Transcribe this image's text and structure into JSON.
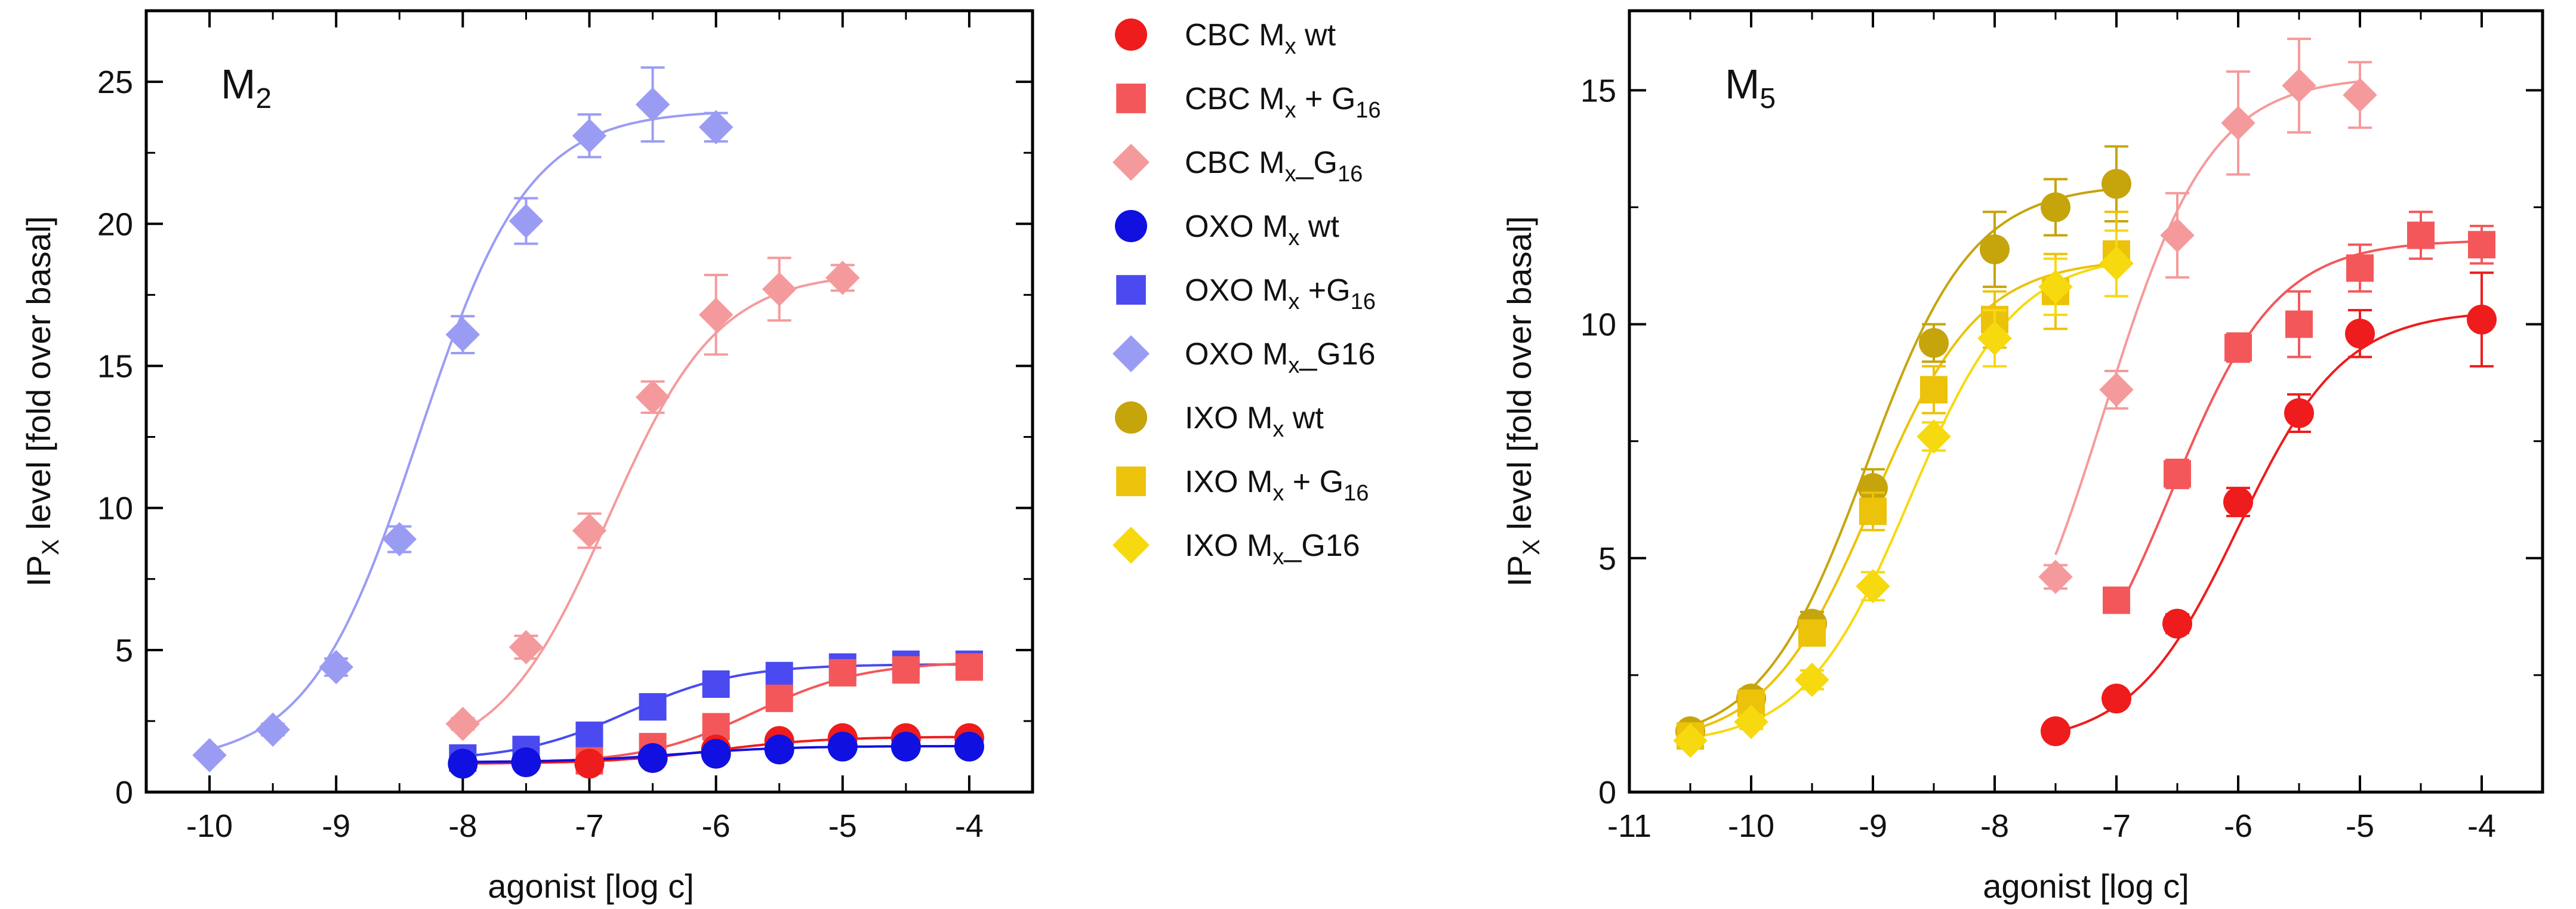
{
  "colors": {
    "cbc_wt": "#ee1c1c",
    "cbc_g16": "#f4575a",
    "cbc_mxg16": "#f59a9c",
    "oxo_wt": "#1010e0",
    "oxo_g16": "#4a4af0",
    "oxo_mxg16": "#9a9cf4",
    "ixo_wt": "#c6a40c",
    "ixo_g16": "#ecc20a",
    "ixo_mxg16": "#f7d90f"
  },
  "legend": {
    "items": [
      {
        "key": "cbc_wt",
        "marker": "circle",
        "prefix": "CBC M",
        "sub1": "x",
        "mid": " wt",
        "sub2": ""
      },
      {
        "key": "cbc_g16",
        "marker": "square",
        "prefix": "CBC M",
        "sub1": "x",
        "mid": " + G",
        "sub2": "16"
      },
      {
        "key": "cbc_mxg16",
        "marker": "diamond",
        "prefix": "CBC M",
        "sub1": "x",
        "mid": "_G",
        "sub2": "16"
      },
      {
        "key": "oxo_wt",
        "marker": "circle",
        "prefix": "OXO M",
        "sub1": "x",
        "mid": " wt",
        "sub2": ""
      },
      {
        "key": "oxo_g16",
        "marker": "square",
        "prefix": "OXO M",
        "sub1": "x",
        "mid": " +G",
        "sub2": "16"
      },
      {
        "key": "oxo_mxg16",
        "marker": "diamond",
        "prefix": "OXO M",
        "sub1": "x",
        "mid": "_G16",
        "sub2": ""
      },
      {
        "key": "ixo_wt",
        "marker": "circle",
        "prefix": "IXO M",
        "sub1": "x",
        "mid": " wt",
        "sub2": ""
      },
      {
        "key": "ixo_g16",
        "marker": "square",
        "prefix": "IXO M",
        "sub1": "x",
        "mid": " + G",
        "sub2": "16"
      },
      {
        "key": "ixo_mxg16",
        "marker": "diamond",
        "prefix": "IXO M",
        "sub1": "x",
        "mid": "_G16",
        "sub2": ""
      }
    ]
  },
  "chart_data": [
    {
      "type": "scatter",
      "panel": "left",
      "title": "M",
      "title_sub": "2",
      "ylabel_main": "IP",
      "ylabel_sub": "X",
      "ylabel_rest": " level [fold over basal]",
      "xlabel": "agonist [log c]",
      "xlim": [
        -10.5,
        -3.5
      ],
      "ylim": [
        0,
        27.5
      ],
      "xticks": [
        -10,
        -9,
        -8,
        -7,
        -6,
        -5,
        -4
      ],
      "yticks": [
        0,
        5,
        10,
        15,
        20,
        25
      ],
      "series": [
        {
          "key": "oxo_mxg16",
          "marker": "diamond",
          "x": [
            -10,
            -9.5,
            -9,
            -8.5,
            -8,
            -7.5,
            -7,
            -6.5,
            -6
          ],
          "y": [
            1.3,
            2.2,
            4.4,
            8.9,
            16.1,
            20.1,
            23.1,
            24.2,
            23.4
          ],
          "err": [
            0.15,
            0.2,
            0.3,
            0.45,
            0.65,
            0.8,
            0.75,
            1.3,
            0.5
          ],
          "curve": {
            "bottom": 1.0,
            "top": 24.0,
            "ec50": -8.35,
            "hill": 1.0,
            "from": -10,
            "to": -6
          }
        },
        {
          "key": "cbc_mxg16",
          "marker": "diamond",
          "x": [
            -8,
            -7.5,
            -7,
            -6.5,
            -6,
            -5.5,
            -5
          ],
          "y": [
            2.4,
            5.1,
            9.2,
            13.9,
            16.8,
            17.7,
            18.1
          ],
          "err": [
            0.2,
            0.4,
            0.6,
            0.55,
            1.4,
            1.1,
            0.45
          ],
          "curve": {
            "bottom": 1.0,
            "top": 18.3,
            "ec50": -6.85,
            "hill": 1.0,
            "from": -8,
            "to": -5
          }
        },
        {
          "key": "oxo_g16",
          "marker": "square",
          "x": [
            -8,
            -7.5,
            -7,
            -6.5,
            -6,
            -5.5,
            -5,
            -4.5,
            -4
          ],
          "y": [
            1.2,
            1.5,
            2.0,
            3.0,
            3.8,
            4.1,
            4.4,
            4.5,
            4.5
          ],
          "err": [
            0.1,
            0.1,
            0.15,
            0.2,
            0.2,
            0.2,
            0.2,
            0.2,
            0.2
          ],
          "curve": {
            "bottom": 1.1,
            "top": 4.5,
            "ec50": -6.7,
            "hill": 1.0,
            "from": -8,
            "to": -4
          }
        },
        {
          "key": "cbc_g16",
          "marker": "square",
          "x": [
            -7,
            -6.5,
            -6,
            -5.5,
            -5,
            -4.5,
            -4
          ],
          "y": [
            1.1,
            1.6,
            2.3,
            3.3,
            4.2,
            4.3,
            4.4
          ],
          "err": [
            0.1,
            0.15,
            0.2,
            0.25,
            0.25,
            0.25,
            0.25
          ],
          "curve": {
            "bottom": 1.0,
            "top": 4.6,
            "ec50": -5.7,
            "hill": 1.0,
            "from": -7,
            "to": -4
          }
        },
        {
          "key": "cbc_wt",
          "marker": "circle",
          "x": [
            -7,
            -6.5,
            -6,
            -5.5,
            -5,
            -4.5,
            -4
          ],
          "y": [
            1.0,
            1.2,
            1.5,
            1.8,
            1.9,
            1.9,
            1.9
          ],
          "err": [
            0.1,
            0.1,
            0.15,
            0.15,
            0.15,
            0.15,
            0.15
          ],
          "curve": {
            "bottom": 1.0,
            "top": 1.95,
            "ec50": -6.0,
            "hill": 1.0,
            "from": -8,
            "to": -4
          }
        },
        {
          "key": "oxo_wt",
          "marker": "circle",
          "x": [
            -8,
            -7.5,
            -6.5,
            -6,
            -5.5,
            -5,
            -4.5,
            -4
          ],
          "y": [
            1.0,
            1.05,
            1.2,
            1.35,
            1.5,
            1.6,
            1.6,
            1.6
          ],
          "err": [
            0.1,
            0.1,
            0.1,
            0.1,
            0.1,
            0.1,
            0.1,
            0.1
          ],
          "curve": {
            "bottom": 1.05,
            "top": 1.62,
            "ec50": -6.3,
            "hill": 1.0,
            "from": -8,
            "to": -4
          }
        }
      ]
    },
    {
      "type": "scatter",
      "panel": "right",
      "title": "M",
      "title_sub": "5",
      "ylabel_main": "IP",
      "ylabel_sub": "X",
      "ylabel_rest": " level [fold over basal]",
      "xlabel": "agonist [log c]",
      "xlim": [
        -11,
        -3.5
      ],
      "ylim": [
        0,
        16.7
      ],
      "xticks": [
        -11,
        -10,
        -9,
        -8,
        -7,
        -6,
        -5,
        -4
      ],
      "yticks": [
        0,
        5,
        10,
        15
      ],
      "series": [
        {
          "key": "ixo_wt",
          "marker": "circle",
          "x": [
            -10.5,
            -10,
            -9.5,
            -9,
            -8.5,
            -8,
            -7.5,
            -7
          ],
          "y": [
            1.3,
            2.0,
            3.6,
            6.5,
            9.6,
            11.6,
            12.5,
            13.0
          ],
          "err": [
            0.15,
            0.2,
            0.25,
            0.4,
            0.4,
            0.8,
            0.6,
            0.8
          ],
          "curve": {
            "bottom": 1.0,
            "top": 13.0,
            "ec50": -9.05,
            "hill": 1.0,
            "from": -10.5,
            "to": -7
          }
        },
        {
          "key": "ixo_g16",
          "marker": "square",
          "x": [
            -10.5,
            -10,
            -9.5,
            -9,
            -8.5,
            -8,
            -7.5,
            -7
          ],
          "y": [
            1.2,
            1.9,
            3.4,
            6.0,
            8.6,
            10.1,
            10.7,
            11.5
          ],
          "err": [
            0.15,
            0.2,
            0.25,
            0.4,
            0.5,
            0.6,
            0.8,
            0.9
          ],
          "curve": {
            "bottom": 1.0,
            "top": 11.4,
            "ec50": -9.0,
            "hill": 1.0,
            "from": -10.5,
            "to": -7
          }
        },
        {
          "key": "ixo_mxg16",
          "marker": "diamond",
          "x": [
            -10.5,
            -10,
            -9.5,
            -9,
            -8.5,
            -8,
            -7.5,
            -7
          ],
          "y": [
            1.1,
            1.5,
            2.4,
            4.4,
            7.6,
            9.7,
            10.8,
            11.3
          ],
          "err": [
            0.1,
            0.15,
            0.2,
            0.3,
            0.3,
            0.6,
            0.6,
            0.7
          ],
          "curve": {
            "bottom": 1.0,
            "top": 11.5,
            "ec50": -8.7,
            "hill": 1.0,
            "from": -10.5,
            "to": -7
          }
        },
        {
          "key": "cbc_mxg16",
          "marker": "diamond",
          "x": [
            -7.5,
            -7,
            -6.5,
            -6,
            -5.5,
            -5
          ],
          "y": [
            4.6,
            8.6,
            11.9,
            14.3,
            15.1,
            14.9
          ],
          "err": [
            0.25,
            0.4,
            0.9,
            1.1,
            1.0,
            0.7
          ],
          "curve": {
            "bottom": 1.0,
            "top": 15.3,
            "ec50": -7.1,
            "hill": 1.0,
            "from": -7.5,
            "to": -5
          }
        },
        {
          "key": "cbc_g16",
          "marker": "square",
          "x": [
            -7,
            -6.5,
            -6,
            -5.5,
            -5,
            -4.5,
            -4
          ],
          "y": [
            4.1,
            6.8,
            9.5,
            10.0,
            11.2,
            11.9,
            11.7
          ],
          "err": [
            0.25,
            0.3,
            0.3,
            0.7,
            0.5,
            0.5,
            0.4
          ],
          "curve": {
            "bottom": 1.0,
            "top": 11.8,
            "ec50": -6.55,
            "hill": 1.0,
            "from": -7,
            "to": -4
          }
        },
        {
          "key": "cbc_wt",
          "marker": "circle",
          "x": [
            -7.5,
            -7,
            -6.5,
            -6,
            -5.5,
            -5,
            -4
          ],
          "y": [
            1.3,
            2.0,
            3.6,
            6.2,
            8.1,
            9.8,
            10.1
          ],
          "err": [
            0.1,
            0.15,
            0.2,
            0.3,
            0.4,
            0.5,
            1.0
          ],
          "curve": {
            "bottom": 1.0,
            "top": 10.3,
            "ec50": -6.0,
            "hill": 1.0,
            "from": -7.5,
            "to": -4
          }
        }
      ]
    }
  ]
}
